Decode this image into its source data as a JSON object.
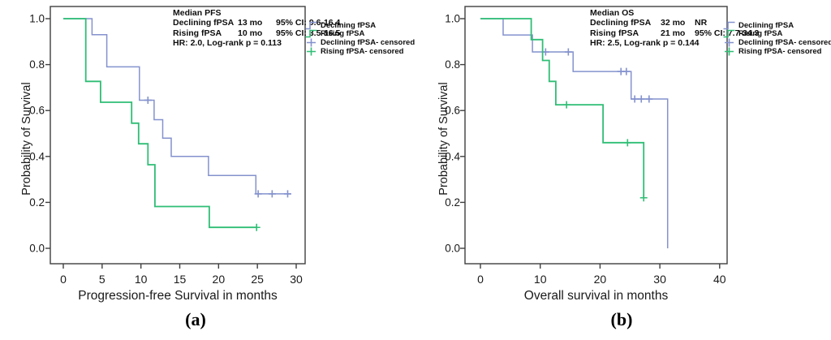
{
  "figure": {
    "background": "#ffffff",
    "axis_color": "#3f3f3f",
    "text_color": "#1a1a1a"
  },
  "chart_data": [
    {
      "type": "line",
      "subtype": "kaplan-meier-step",
      "caption": "(a)",
      "title": "",
      "xlabel": "Progression-free Survival in months",
      "ylabel": "Probability of Survival",
      "xlim": [
        0,
        31
      ],
      "ylim": [
        0.0,
        1.0
      ],
      "xticks": [
        0,
        5,
        10,
        15,
        20,
        25,
        30
      ],
      "yticks": [
        1.0,
        0.8,
        0.6,
        0.4,
        0.2,
        0.0
      ],
      "grid": false,
      "legend_position": "right-outside",
      "annotation": {
        "title": "Median PFS",
        "rows": [
          {
            "name": "Declining fPSA",
            "median": "13 mo",
            "ci": "95% CI: 9.6-16.4"
          },
          {
            "name": "Rising fPSA",
            "median": "10 mo",
            "ci": "95% CI: 3.5-16.5"
          }
        ],
        "footer": "HR: 2.0, Log-rank p = 0.113"
      },
      "legend": [
        {
          "label": "Declining fPSA",
          "marker": "step",
          "color": "#8492ce"
        },
        {
          "label": "Rising fPSA",
          "marker": "step",
          "color": "#2fbe75"
        },
        {
          "label": "Declining fPSA- censored",
          "marker": "plus",
          "color": "#8492ce"
        },
        {
          "label": "Rising fPSA- censored",
          "marker": "plus",
          "color": "#2fbe75"
        }
      ],
      "series": [
        {
          "name": "Declining fPSA",
          "color": "#8492ce",
          "stroke_width": 1.5,
          "steps": [
            [
              0,
              1.0
            ],
            [
              3.7,
              1.0
            ],
            [
              3.7,
              0.93
            ],
            [
              5.6,
              0.93
            ],
            [
              5.6,
              0.79
            ],
            [
              9.8,
              0.79
            ],
            [
              9.8,
              0.645
            ],
            [
              11.7,
              0.645
            ],
            [
              11.7,
              0.56
            ],
            [
              12.8,
              0.56
            ],
            [
              12.8,
              0.48
            ],
            [
              13.9,
              0.48
            ],
            [
              13.9,
              0.4
            ],
            [
              18.7,
              0.4
            ],
            [
              18.7,
              0.317
            ],
            [
              24.8,
              0.317
            ],
            [
              24.8,
              0.237
            ],
            [
              29.3,
              0.237
            ]
          ],
          "censored": [
            [
              10.9,
              0.645
            ],
            [
              25.1,
              0.237
            ],
            [
              26.9,
              0.237
            ],
            [
              28.9,
              0.237
            ]
          ]
        },
        {
          "name": "Rising fPSA",
          "color": "#2fbe75",
          "stroke_width": 1.8,
          "steps": [
            [
              0,
              1.0
            ],
            [
              2.9,
              1.0
            ],
            [
              2.9,
              0.727
            ],
            [
              4.8,
              0.727
            ],
            [
              4.8,
              0.636
            ],
            [
              8.8,
              0.636
            ],
            [
              8.8,
              0.545
            ],
            [
              9.7,
              0.545
            ],
            [
              9.7,
              0.455
            ],
            [
              10.9,
              0.455
            ],
            [
              10.9,
              0.364
            ],
            [
              11.8,
              0.364
            ],
            [
              11.8,
              0.182
            ],
            [
              18.8,
              0.182
            ],
            [
              18.8,
              0.091
            ],
            [
              24.9,
              0.091
            ]
          ],
          "censored": [
            [
              24.9,
              0.091
            ]
          ]
        }
      ]
    },
    {
      "type": "line",
      "subtype": "kaplan-meier-step",
      "caption": "(b)",
      "title": "",
      "xlabel": "Overall survival in months",
      "ylabel": "Probability of Survival",
      "xlim": [
        0,
        41
      ],
      "ylim": [
        0.0,
        1.0
      ],
      "xticks": [
        0,
        10,
        20,
        30,
        40
      ],
      "yticks": [
        1.0,
        0.8,
        0.6,
        0.4,
        0.2,
        0.0
      ],
      "grid": false,
      "legend_position": "right-outside",
      "annotation": {
        "title": "Median OS",
        "rows": [
          {
            "name": "Declining fPSA",
            "median": "32 mo",
            "ci": "NR"
          },
          {
            "name": "Rising fPSA",
            "median": "21 mo",
            "ci": "95% CI: 7.7-34.3"
          }
        ],
        "footer": "HR: 2.5, Log-rank p = 0.144"
      },
      "legend": [
        {
          "label": "Declining fPSA",
          "marker": "step",
          "color": "#8492ce"
        },
        {
          "label": "Rising fPSA",
          "marker": "step",
          "color": "#2fbe75"
        },
        {
          "label": "Declining fPSA- censored",
          "marker": "plus",
          "color": "#8492ce"
        },
        {
          "label": "Rising fPSA- censored",
          "marker": "plus",
          "color": "#2fbe75"
        }
      ],
      "series": [
        {
          "name": "Declining fPSA",
          "color": "#8492ce",
          "stroke_width": 1.5,
          "steps": [
            [
              0,
              1.0
            ],
            [
              3.8,
              1.0
            ],
            [
              3.8,
              0.929
            ],
            [
              8.7,
              0.929
            ],
            [
              8.7,
              0.855
            ],
            [
              15.5,
              0.855
            ],
            [
              15.5,
              0.77
            ],
            [
              25.2,
              0.77
            ],
            [
              25.2,
              0.65
            ],
            [
              31.3,
              0.65
            ],
            [
              31.3,
              0.0
            ]
          ],
          "censored": [
            [
              10.9,
              0.855
            ],
            [
              14.7,
              0.855
            ],
            [
              23.5,
              0.77
            ],
            [
              24.4,
              0.77
            ],
            [
              25.8,
              0.65
            ],
            [
              26.9,
              0.65
            ],
            [
              28.2,
              0.65
            ]
          ]
        },
        {
          "name": "Rising fPSA",
          "color": "#2fbe75",
          "stroke_width": 1.8,
          "steps": [
            [
              0,
              1.0
            ],
            [
              8.5,
              1.0
            ],
            [
              8.5,
              0.909
            ],
            [
              10.4,
              0.909
            ],
            [
              10.4,
              0.818
            ],
            [
              11.5,
              0.818
            ],
            [
              11.5,
              0.727
            ],
            [
              12.6,
              0.727
            ],
            [
              12.6,
              0.625
            ],
            [
              20.5,
              0.625
            ],
            [
              20.5,
              0.46
            ],
            [
              27.3,
              0.46
            ],
            [
              27.3,
              0.22
            ]
          ],
          "censored": [
            [
              14.4,
              0.625
            ],
            [
              24.6,
              0.46
            ],
            [
              27.3,
              0.22
            ]
          ]
        }
      ]
    }
  ]
}
